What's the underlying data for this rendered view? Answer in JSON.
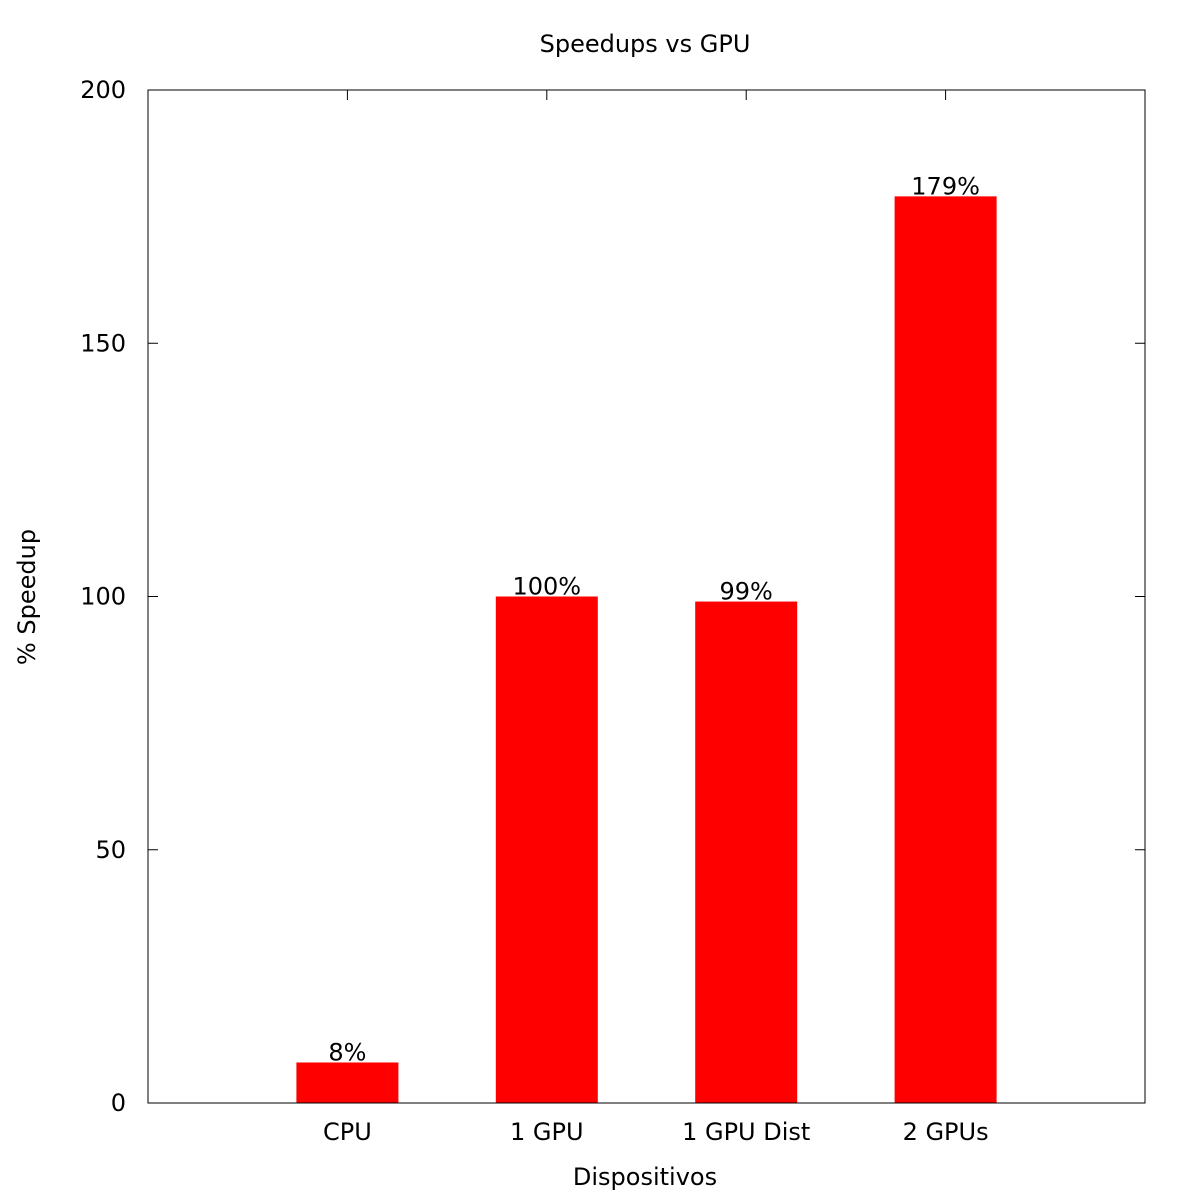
{
  "chart_data": {
    "type": "bar",
    "title": "Speedups vs GPU",
    "xlabel": "Dispositivos",
    "ylabel": "% Speedup",
    "categories": [
      "CPU",
      "1 GPU",
      "1 GPU Dist",
      "2 GPUs"
    ],
    "values": [
      8,
      100,
      99,
      179
    ],
    "data_labels": [
      "8%",
      "100%",
      "99%",
      "179%"
    ],
    "ylim": [
      0,
      200
    ],
    "yticks": [
      0,
      50,
      100,
      150,
      200
    ],
    "bar_color": "#ff0000",
    "grid": false,
    "legend": "none"
  }
}
